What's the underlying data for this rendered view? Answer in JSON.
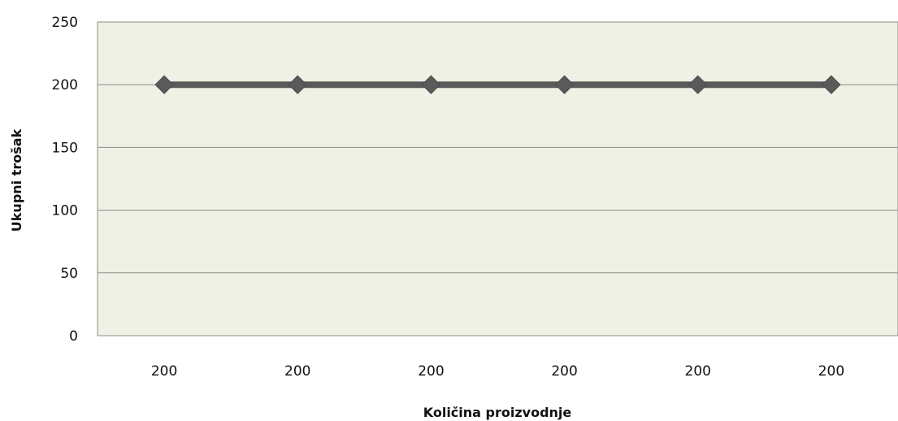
{
  "chart_data": {
    "type": "line",
    "categories": [
      "200",
      "200",
      "200",
      "200",
      "200",
      "200"
    ],
    "series": [
      {
        "values": [
          200,
          200,
          200,
          200,
          200,
          200
        ]
      }
    ],
    "title": "",
    "xlabel": "Količina proizvodnje",
    "ylabel": "Ukupni trošak",
    "ylim": [
      0,
      250
    ],
    "yticks": [
      0,
      50,
      100,
      150,
      200,
      250
    ],
    "grid": true,
    "legend": "none",
    "colors": {
      "plot_background": "#eef1e3",
      "gridline": "#8c8c8c",
      "series_line": "#5a5a5a",
      "marker": "#5a5a5a"
    }
  }
}
